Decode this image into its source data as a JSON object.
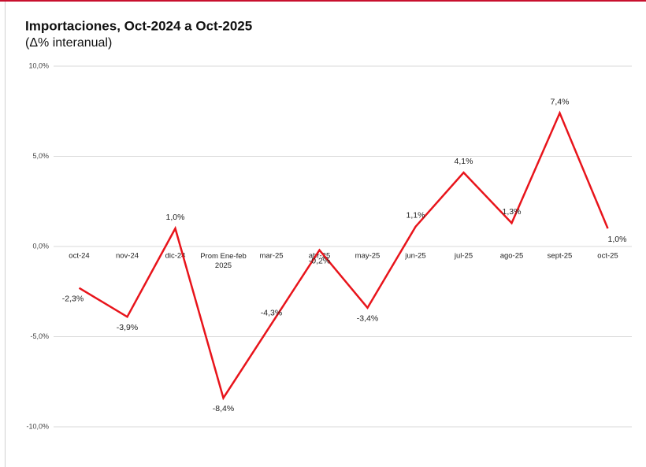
{
  "chart_data": {
    "type": "line",
    "title": "Importaciones, Oct-2024 a Oct-2025",
    "subtitle": "(Δ% interanual)",
    "categories": [
      "oct-24",
      "nov-24",
      "dic-24",
      "Prom Ene-feb 2025",
      "mar-25",
      "abr-25",
      "may-25",
      "jun-25",
      "jul-25",
      "ago-25",
      "sept-25",
      "oct-25"
    ],
    "series": [
      {
        "name": "Importaciones",
        "color": "#e8141b",
        "values": [
          -2.3,
          -3.9,
          1.0,
          -8.4,
          -4.3,
          -0.2,
          -3.4,
          1.1,
          4.1,
          1.3,
          7.4,
          1.0
        ],
        "value_labels": [
          "-2,3%",
          "-3,9%",
          "1,0%",
          "-8,4%",
          "-4,3%",
          "-0,2%",
          "-3,4%",
          "1,1%",
          "4,1%",
          "1,3%",
          "7,4%",
          "1,0%"
        ]
      }
    ],
    "ylim": [
      -10,
      10
    ],
    "yticks": [
      {
        "value": -10,
        "label": "-10,0%"
      },
      {
        "value": -5,
        "label": "-5,0%"
      },
      {
        "value": 0,
        "label": "0,0%"
      },
      {
        "value": 5,
        "label": "5,0%"
      },
      {
        "value": 10,
        "label": "10,0%"
      }
    ],
    "grid": true
  }
}
